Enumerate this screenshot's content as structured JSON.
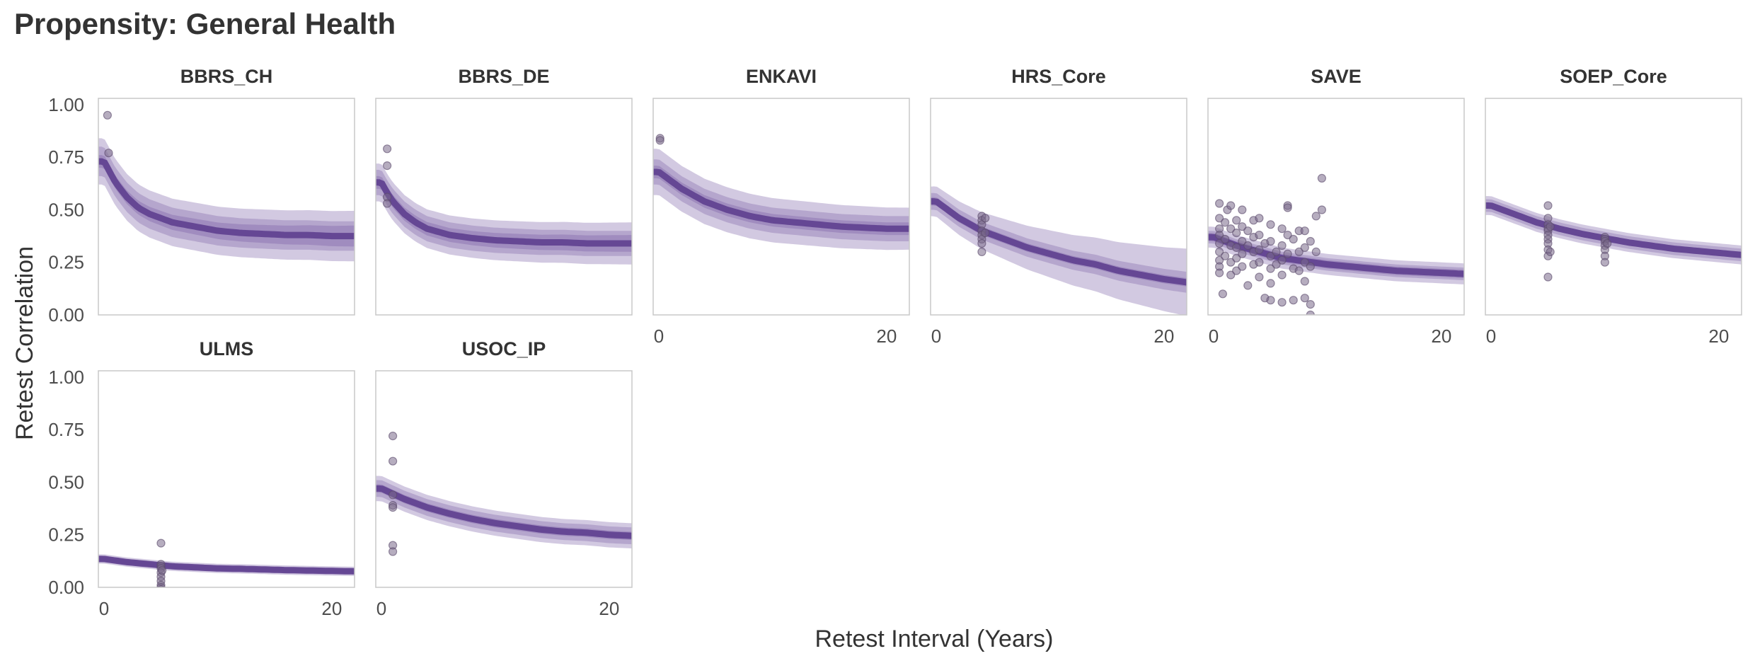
{
  "chart_data": {
    "type": "scatter",
    "title": "Propensity: General Health",
    "xlabel": "Retest Interval (Years)",
    "ylabel": "Retest Correlation",
    "xlim": [
      -0.5,
      22
    ],
    "ylim": [
      0,
      1.03
    ],
    "x_ticks": [
      "0",
      "20"
    ],
    "y_ticks": [
      "0.00",
      "0.25",
      "0.50",
      "0.75",
      "1.00"
    ],
    "grid": false,
    "colors": {
      "band": "#6a4c9c",
      "point": "#7a6a8a",
      "panel_border": "#c8c8c8",
      "text": "#333333"
    },
    "panels": [
      {
        "name": "BBRS_CH",
        "curve": {
          "x": [
            0,
            0.5,
            1,
            2,
            3,
            4,
            6,
            8,
            10,
            12,
            14,
            16,
            18,
            20,
            22
          ],
          "y": [
            0.73,
            0.68,
            0.63,
            0.56,
            0.51,
            0.48,
            0.44,
            0.42,
            0.4,
            0.39,
            0.385,
            0.38,
            0.38,
            0.375,
            0.375
          ]
        },
        "bands": [
          [
            0.03,
            0.05
          ],
          [
            0.07,
            0.07
          ],
          [
            0.11,
            0.12
          ]
        ],
        "points": [
          [
            0.3,
            0.95
          ],
          [
            0.4,
            0.77
          ]
        ]
      },
      {
        "name": "BBRS_DE",
        "curve": {
          "x": [
            0,
            0.5,
            1,
            2,
            3,
            4,
            6,
            8,
            10,
            12,
            14,
            16,
            18,
            20,
            22
          ],
          "y": [
            0.63,
            0.58,
            0.54,
            0.48,
            0.44,
            0.41,
            0.38,
            0.365,
            0.355,
            0.35,
            0.345,
            0.345,
            0.34,
            0.34,
            0.34
          ]
        },
        "bands": [
          [
            0.03,
            0.04
          ],
          [
            0.06,
            0.06
          ],
          [
            0.09,
            0.1
          ]
        ],
        "points": [
          [
            0.5,
            0.79
          ],
          [
            0.5,
            0.71
          ],
          [
            0.5,
            0.56
          ],
          [
            0.5,
            0.53
          ]
        ]
      },
      {
        "name": "ENKAVI",
        "curve": {
          "x": [
            0,
            1,
            2,
            4,
            6,
            8,
            10,
            12,
            14,
            16,
            18,
            20,
            22
          ],
          "y": [
            0.68,
            0.64,
            0.6,
            0.54,
            0.5,
            0.47,
            0.45,
            0.44,
            0.43,
            0.42,
            0.415,
            0.41,
            0.41
          ]
        },
        "bands": [
          [
            0.03,
            0.03
          ],
          [
            0.06,
            0.06
          ],
          [
            0.11,
            0.1
          ]
        ],
        "points": [
          [
            0.1,
            0.84
          ],
          [
            0.1,
            0.83
          ]
        ]
      },
      {
        "name": "HRS_Core",
        "curve": {
          "x": [
            0,
            2,
            4,
            6,
            8,
            10,
            12,
            14,
            16,
            18,
            20,
            22
          ],
          "y": [
            0.54,
            0.46,
            0.4,
            0.36,
            0.32,
            0.29,
            0.26,
            0.24,
            0.21,
            0.19,
            0.17,
            0.155
          ]
        },
        "bands": [
          [
            0.02,
            0.02
          ],
          [
            0.04,
            0.05
          ],
          [
            0.07,
            0.16
          ]
        ],
        "points": [
          [
            4,
            0.47
          ],
          [
            4,
            0.45
          ],
          [
            4,
            0.43
          ],
          [
            4,
            0.4
          ],
          [
            4,
            0.38
          ],
          [
            4,
            0.36
          ],
          [
            4,
            0.34
          ],
          [
            4,
            0.3
          ],
          [
            4.3,
            0.46
          ],
          [
            4.3,
            0.39
          ]
        ]
      },
      {
        "name": "SAVE",
        "curve": {
          "x": [
            0,
            2,
            4,
            6,
            8,
            10,
            12,
            14,
            16,
            18,
            20,
            22
          ],
          "y": [
            0.37,
            0.33,
            0.3,
            0.27,
            0.255,
            0.24,
            0.23,
            0.22,
            0.21,
            0.205,
            0.2,
            0.195
          ]
        },
        "bands": [
          [
            0.02,
            0.02
          ],
          [
            0.03,
            0.03
          ],
          [
            0.05,
            0.05
          ]
        ],
        "points": [
          [
            0.5,
            0.53
          ],
          [
            0.5,
            0.46
          ],
          [
            0.5,
            0.41
          ],
          [
            0.5,
            0.38
          ],
          [
            0.5,
            0.34
          ],
          [
            0.5,
            0.3
          ],
          [
            0.5,
            0.26
          ],
          [
            0.5,
            0.23
          ],
          [
            0.5,
            0.2
          ],
          [
            0.8,
            0.1
          ],
          [
            1,
            0.44
          ],
          [
            1,
            0.36
          ],
          [
            1,
            0.28
          ],
          [
            1.2,
            0.5
          ],
          [
            1.5,
            0.52
          ],
          [
            1.5,
            0.41
          ],
          [
            1.5,
            0.33
          ],
          [
            1.5,
            0.25
          ],
          [
            1.5,
            0.19
          ],
          [
            2,
            0.45
          ],
          [
            2,
            0.39
          ],
          [
            2,
            0.32
          ],
          [
            2,
            0.27
          ],
          [
            2,
            0.21
          ],
          [
            2.5,
            0.5
          ],
          [
            2.5,
            0.42
          ],
          [
            2.5,
            0.35
          ],
          [
            2.5,
            0.29
          ],
          [
            2.5,
            0.23
          ],
          [
            3,
            0.4
          ],
          [
            3,
            0.33
          ],
          [
            3,
            0.14
          ],
          [
            3.5,
            0.45
          ],
          [
            3.5,
            0.37
          ],
          [
            3.5,
            0.3
          ],
          [
            3.5,
            0.24
          ],
          [
            4,
            0.46
          ],
          [
            4,
            0.38
          ],
          [
            4,
            0.31
          ],
          [
            4,
            0.25
          ],
          [
            4,
            0.18
          ],
          [
            4.5,
            0.34
          ],
          [
            4.5,
            0.08
          ],
          [
            5,
            0.43
          ],
          [
            5,
            0.35
          ],
          [
            5,
            0.28
          ],
          [
            5,
            0.22
          ],
          [
            5,
            0.15
          ],
          [
            5,
            0.07
          ],
          [
            5.5,
            0.3
          ],
          [
            5.5,
            0.24
          ],
          [
            6,
            0.41
          ],
          [
            6,
            0.33
          ],
          [
            6,
            0.26
          ],
          [
            6,
            0.19
          ],
          [
            6,
            0.06
          ],
          [
            6.5,
            0.52
          ],
          [
            6.5,
            0.51
          ],
          [
            6.5,
            0.38
          ],
          [
            6.5,
            0.29
          ],
          [
            7,
            0.36
          ],
          [
            7,
            0.22
          ],
          [
            7,
            0.07
          ],
          [
            7.5,
            0.4
          ],
          [
            7.5,
            0.3
          ],
          [
            7.5,
            0.21
          ],
          [
            8,
            0.4
          ],
          [
            8,
            0.32
          ],
          [
            8,
            0.25
          ],
          [
            8,
            0.16
          ],
          [
            8,
            0.08
          ],
          [
            8.5,
            0.35
          ],
          [
            8.5,
            0.23
          ],
          [
            8.5,
            0.05
          ],
          [
            8.5,
            0.0
          ],
          [
            9,
            0.47
          ],
          [
            9,
            0.3
          ],
          [
            9.5,
            0.65
          ],
          [
            9.5,
            0.5
          ],
          [
            10.5,
            -0.03
          ]
        ]
      },
      {
        "name": "SOEP_Core",
        "curve": {
          "x": [
            0,
            2,
            4,
            6,
            8,
            10,
            12,
            14,
            16,
            18,
            20,
            22
          ],
          "y": [
            0.52,
            0.48,
            0.44,
            0.41,
            0.385,
            0.365,
            0.345,
            0.33,
            0.315,
            0.305,
            0.295,
            0.285
          ]
        },
        "bands": [
          [
            0.015,
            0.015
          ],
          [
            0.03,
            0.03
          ],
          [
            0.045,
            0.045
          ]
        ],
        "points": [
          [
            5,
            0.52
          ],
          [
            5,
            0.46
          ],
          [
            5,
            0.43
          ],
          [
            5,
            0.41
          ],
          [
            5,
            0.4
          ],
          [
            5,
            0.38
          ],
          [
            5,
            0.36
          ],
          [
            5,
            0.34
          ],
          [
            5,
            0.31
          ],
          [
            5,
            0.28
          ],
          [
            5,
            0.18
          ],
          [
            5.2,
            0.42
          ],
          [
            5.2,
            0.3
          ],
          [
            10,
            0.37
          ],
          [
            10,
            0.36
          ],
          [
            10,
            0.35
          ],
          [
            10,
            0.33
          ],
          [
            10,
            0.31
          ],
          [
            10,
            0.28
          ],
          [
            10,
            0.25
          ],
          [
            10.2,
            0.34
          ]
        ]
      },
      {
        "name": "ULMS",
        "curve": {
          "x": [
            0,
            2,
            4,
            6,
            8,
            10,
            12,
            14,
            16,
            18,
            20,
            22
          ],
          "y": [
            0.135,
            0.12,
            0.11,
            0.1,
            0.095,
            0.09,
            0.088,
            0.085,
            0.082,
            0.08,
            0.078,
            0.076
          ]
        },
        "bands": [
          [
            0.008,
            0.008
          ],
          [
            0.015,
            0.015
          ],
          [
            0.022,
            0.022
          ]
        ],
        "points": [
          [
            5,
            0.21
          ],
          [
            5,
            0.11
          ],
          [
            5,
            0.1
          ],
          [
            5,
            0.09
          ],
          [
            5,
            0.07
          ],
          [
            5,
            0.05
          ],
          [
            5,
            0.03
          ],
          [
            5,
            0.01
          ],
          [
            5,
            0.0
          ],
          [
            5,
            -0.01
          ],
          [
            5.1,
            0.08
          ]
        ]
      },
      {
        "name": "USOC_IP",
        "curve": {
          "x": [
            0,
            1,
            2,
            4,
            6,
            8,
            10,
            12,
            14,
            16,
            18,
            20,
            22
          ],
          "y": [
            0.47,
            0.445,
            0.42,
            0.38,
            0.35,
            0.325,
            0.305,
            0.29,
            0.275,
            0.265,
            0.26,
            0.25,
            0.245
          ]
        },
        "bands": [
          [
            0.02,
            0.02
          ],
          [
            0.04,
            0.04
          ],
          [
            0.06,
            0.06
          ]
        ],
        "points": [
          [
            1,
            0.72
          ],
          [
            1,
            0.6
          ],
          [
            1,
            0.44
          ],
          [
            1,
            0.39
          ],
          [
            1,
            0.38
          ],
          [
            1,
            0.2
          ],
          [
            1,
            0.17
          ]
        ]
      }
    ]
  }
}
